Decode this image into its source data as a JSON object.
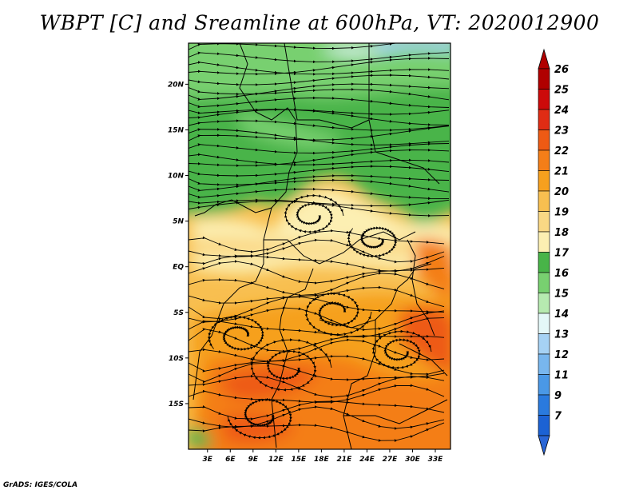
{
  "title": "WBPT [C] and Sreamline at 600hPa, VT: 2020012900",
  "credit": "GrADS: IGES/COLA",
  "map": {
    "lat_ticks": [
      {
        "value": 20,
        "label": "20N"
      },
      {
        "value": 15,
        "label": "15N"
      },
      {
        "value": 10,
        "label": "10N"
      },
      {
        "value": 5,
        "label": "5N"
      },
      {
        "value": 0,
        "label": "EQ"
      },
      {
        "value": -5,
        "label": "5S"
      },
      {
        "value": -10,
        "label": "10S"
      },
      {
        "value": -15,
        "label": "15S"
      }
    ],
    "lon_ticks": [
      {
        "value": 3,
        "label": "3E"
      },
      {
        "value": 6,
        "label": "6E"
      },
      {
        "value": 9,
        "label": "9E"
      },
      {
        "value": 12,
        "label": "12E"
      },
      {
        "value": 15,
        "label": "15E"
      },
      {
        "value": 18,
        "label": "18E"
      },
      {
        "value": 21,
        "label": "21E"
      },
      {
        "value": 24,
        "label": "24E"
      },
      {
        "value": 27,
        "label": "27E"
      },
      {
        "value": 30,
        "label": "30E"
      },
      {
        "value": 33,
        "label": "33E"
      }
    ],
    "lon_range": [
      0.5,
      35
    ],
    "lat_range": [
      -20,
      24.5
    ]
  },
  "colorbar": {
    "levels": [
      {
        "label": "26",
        "color": "#b00000"
      },
      {
        "label": "25",
        "color": "#cc0a0a"
      },
      {
        "label": "24",
        "color": "#e02c14"
      },
      {
        "label": "23",
        "color": "#ee5a14"
      },
      {
        "label": "22",
        "color": "#f47e18"
      },
      {
        "label": "21",
        "color": "#f6a01e"
      },
      {
        "label": "20",
        "color": "#f8bf50"
      },
      {
        "label": "19",
        "color": "#fad884"
      },
      {
        "label": "18",
        "color": "#fcefb2"
      },
      {
        "label": "17",
        "color": "#48b448"
      },
      {
        "label": "16",
        "color": "#78d070"
      },
      {
        "label": "15",
        "color": "#b6eab0"
      },
      {
        "label": "14",
        "color": "#e4f8f8"
      },
      {
        "label": "13",
        "color": "#a6d2f4"
      },
      {
        "label": "12",
        "color": "#78b6ee"
      },
      {
        "label": "11",
        "color": "#4a98e6"
      },
      {
        "label": "9",
        "color": "#2a7ade"
      },
      {
        "label": "7",
        "color": "#1c62d4"
      }
    ],
    "top_arrow_color": "#b00000",
    "bottom_arrow_color": "#2a66d6"
  }
}
